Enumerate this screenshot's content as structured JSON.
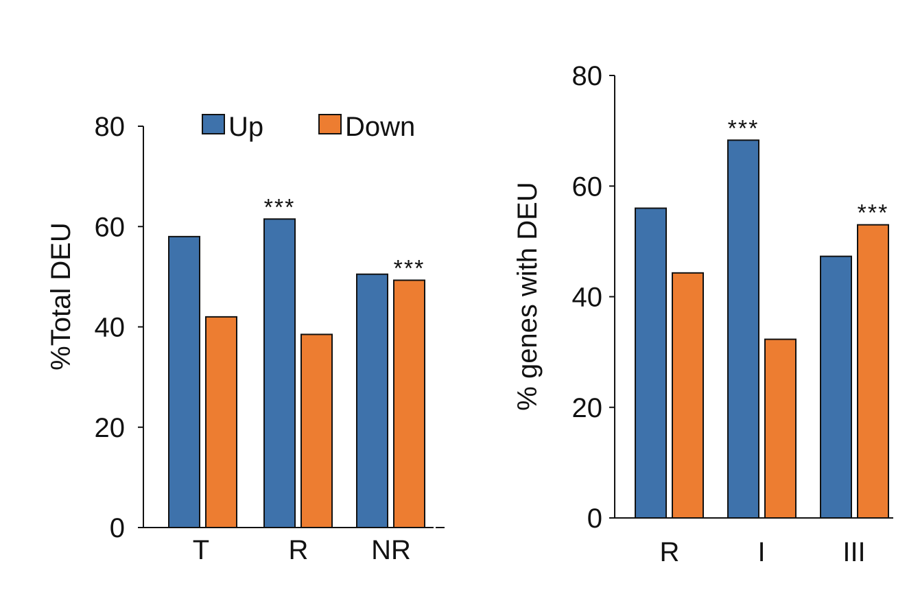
{
  "colors": {
    "up": "#3e72ab",
    "down": "#ed7d31"
  },
  "legend": {
    "up_label": "Up",
    "down_label": "Down"
  },
  "chart_data": [
    {
      "type": "bar",
      "ylabel": "%Total DEU",
      "ylim": [
        0,
        80
      ],
      "yticks": [
        0,
        20,
        40,
        60,
        80
      ],
      "categories": [
        "T",
        "R",
        "NR"
      ],
      "series": [
        {
          "name": "Up",
          "values": [
            58,
            61.5,
            50.5
          ]
        },
        {
          "name": "Down",
          "values": [
            42,
            38.5,
            49.3
          ]
        }
      ],
      "annotations": [
        {
          "category": "R",
          "series": "Up",
          "text": "***"
        },
        {
          "category": "NR",
          "series": "Down",
          "text": "***"
        }
      ],
      "legend_position": "top"
    },
    {
      "type": "bar",
      "ylabel": "% genes with DEU",
      "ylim": [
        0,
        80
      ],
      "yticks": [
        0,
        20,
        40,
        60,
        80
      ],
      "categories": [
        "R",
        "I",
        "III"
      ],
      "series": [
        {
          "name": "Up",
          "values": [
            56,
            68.3,
            47.3
          ]
        },
        {
          "name": "Down",
          "values": [
            44.3,
            32.3,
            53
          ]
        }
      ],
      "annotations": [
        {
          "category": "I",
          "series": "Up",
          "text": "***"
        },
        {
          "category": "III",
          "series": "Down",
          "text": "***"
        }
      ]
    }
  ]
}
